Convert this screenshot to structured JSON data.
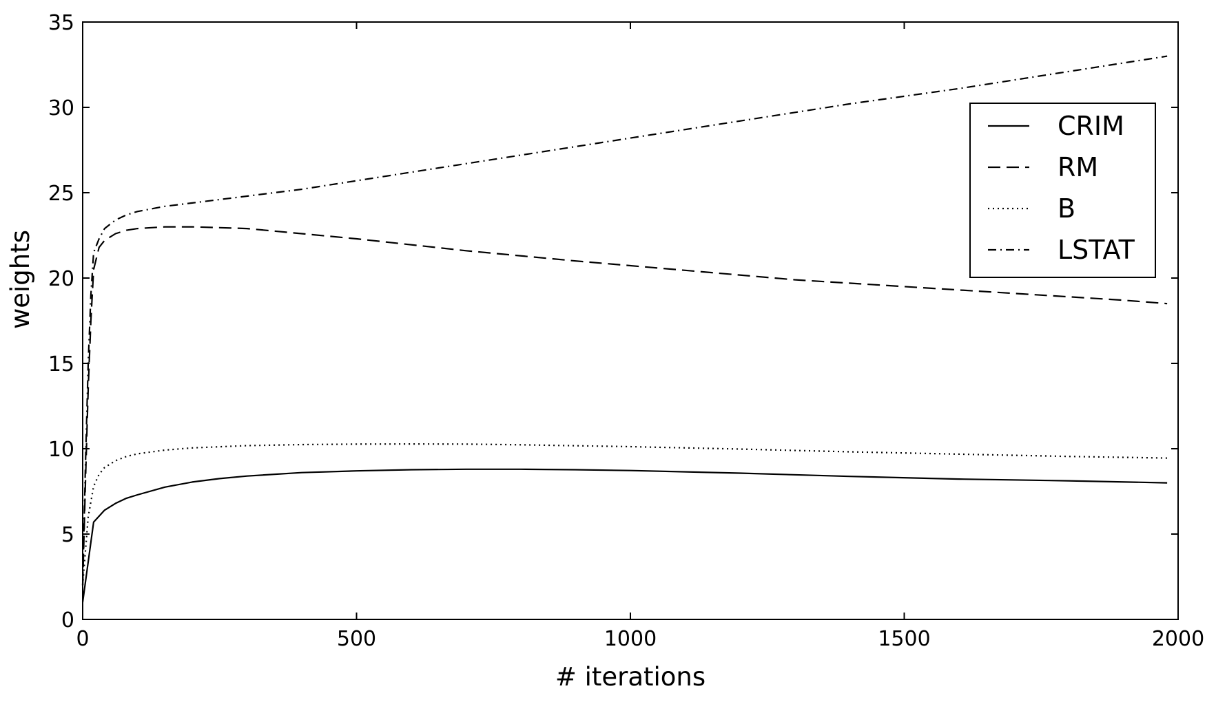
{
  "chart_data": {
    "type": "line",
    "title": "",
    "xlabel": "# iterations",
    "ylabel": "weights",
    "xlim": [
      0,
      2000
    ],
    "ylim": [
      0,
      35
    ],
    "xticks": [
      0,
      500,
      1000,
      1500,
      2000
    ],
    "yticks": [
      0,
      5,
      10,
      15,
      20,
      25,
      30,
      35
    ],
    "xtick_labels": [
      "0",
      "500",
      "1000",
      "1500",
      "2000"
    ],
    "ytick_labels": [
      "0",
      "5",
      "10",
      "15",
      "20",
      "25",
      "30",
      "35"
    ],
    "grid": false,
    "legend_position": "upper right",
    "series": [
      {
        "name": "CRIM",
        "style": "solid",
        "x": [
          0,
          20,
          40,
          60,
          80,
          100,
          150,
          200,
          250,
          300,
          400,
          500,
          600,
          700,
          800,
          900,
          1000,
          1200,
          1400,
          1600,
          1800,
          1980
        ],
        "y": [
          1.0,
          5.7,
          6.4,
          6.8,
          7.1,
          7.3,
          7.75,
          8.05,
          8.25,
          8.4,
          8.6,
          8.7,
          8.77,
          8.8,
          8.8,
          8.77,
          8.72,
          8.57,
          8.38,
          8.22,
          8.12,
          8.0
        ]
      },
      {
        "name": "RM",
        "style": "dashed",
        "x": [
          0,
          5,
          10,
          15,
          20,
          30,
          40,
          60,
          80,
          100,
          150,
          200,
          250,
          300,
          400,
          500,
          700,
          900,
          1100,
          1300,
          1500,
          1700,
          1900,
          1980
        ],
        "y": [
          2.0,
          8.0,
          13.5,
          17.5,
          20.5,
          21.8,
          22.2,
          22.6,
          22.8,
          22.9,
          23.0,
          23.0,
          22.95,
          22.9,
          22.6,
          22.3,
          21.6,
          21.0,
          20.45,
          19.9,
          19.5,
          19.1,
          18.7,
          18.5
        ]
      },
      {
        "name": "B",
        "style": "dotted",
        "x": [
          0,
          10,
          20,
          30,
          40,
          60,
          80,
          100,
          150,
          200,
          300,
          400,
          500,
          600,
          700,
          800,
          1000,
          1200,
          1400,
          1600,
          1800,
          1980
        ],
        "y": [
          2.0,
          6.0,
          7.8,
          8.5,
          8.9,
          9.3,
          9.55,
          9.7,
          9.92,
          10.05,
          10.18,
          10.24,
          10.27,
          10.28,
          10.27,
          10.23,
          10.12,
          9.98,
          9.82,
          9.68,
          9.55,
          9.45
        ]
      },
      {
        "name": "LSTAT",
        "style": "dashdot",
        "x": [
          0,
          5,
          10,
          15,
          20,
          30,
          40,
          60,
          80,
          100,
          150,
          200,
          300,
          400,
          500,
          600,
          800,
          1000,
          1200,
          1400,
          1600,
          1800,
          1980
        ],
        "y": [
          2.0,
          9.0,
          15.0,
          19.0,
          21.5,
          22.3,
          22.9,
          23.4,
          23.7,
          23.9,
          24.2,
          24.4,
          24.8,
          25.2,
          25.7,
          26.2,
          27.2,
          28.2,
          29.2,
          30.2,
          31.1,
          32.1,
          33.0
        ]
      }
    ]
  }
}
